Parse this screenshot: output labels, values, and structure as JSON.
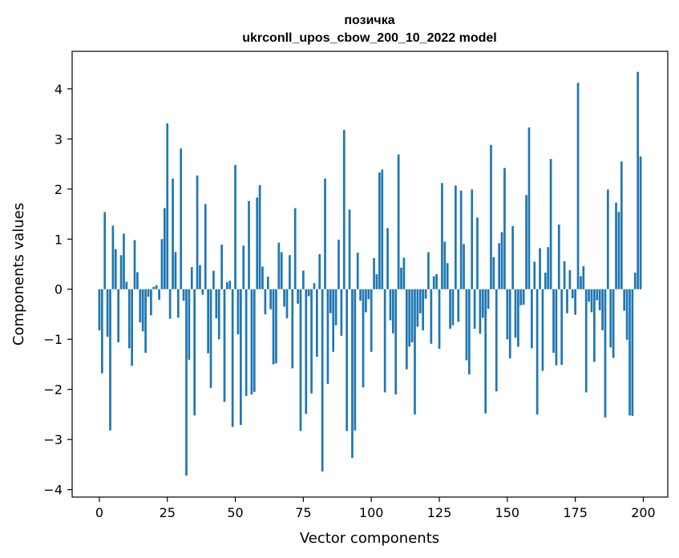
{
  "chart_data": {
    "type": "bar",
    "title_line1": "позичка",
    "title_line2": "ukrconll_upos_cbow_200_10_2022 model",
    "xlabel": "Vector components",
    "ylabel": "Components values",
    "xlim": [
      -10,
      209
    ],
    "ylim": [
      -4.15,
      4.75
    ],
    "xticks": [
      0,
      25,
      50,
      75,
      100,
      125,
      150,
      175,
      200
    ],
    "xtick_labels": [
      "0",
      "25",
      "50",
      "75",
      "100",
      "125",
      "150",
      "175",
      "200"
    ],
    "yticks": [
      -4,
      -3,
      -2,
      -1,
      0,
      1,
      2,
      3,
      4
    ],
    "ytick_labels": [
      "−4",
      "−3",
      "−2",
      "−1",
      "0",
      "1",
      "2",
      "3",
      "4"
    ],
    "bar_color": "#1f77b4",
    "grid": false,
    "x": [
      0,
      1,
      2,
      3,
      4,
      5,
      6,
      7,
      8,
      9,
      10,
      11,
      12,
      13,
      14,
      15,
      16,
      17,
      18,
      19,
      20,
      21,
      22,
      23,
      24,
      25,
      26,
      27,
      28,
      29,
      30,
      31,
      32,
      33,
      34,
      35,
      36,
      37,
      38,
      39,
      40,
      41,
      42,
      43,
      44,
      45,
      46,
      47,
      48,
      49,
      50,
      51,
      52,
      53,
      54,
      55,
      56,
      57,
      58,
      59,
      60,
      61,
      62,
      63,
      64,
      65,
      66,
      67,
      68,
      69,
      70,
      71,
      72,
      73,
      74,
      75,
      76,
      77,
      78,
      79,
      80,
      81,
      82,
      83,
      84,
      85,
      86,
      87,
      88,
      89,
      90,
      91,
      92,
      93,
      94,
      95,
      96,
      97,
      98,
      99,
      100,
      101,
      102,
      103,
      104,
      105,
      106,
      107,
      108,
      109,
      110,
      111,
      112,
      113,
      114,
      115,
      116,
      117,
      118,
      119,
      120,
      121,
      122,
      123,
      124,
      125,
      126,
      127,
      128,
      129,
      130,
      131,
      132,
      133,
      134,
      135,
      136,
      137,
      138,
      139,
      140,
      141,
      142,
      143,
      144,
      145,
      146,
      147,
      148,
      149,
      150,
      151,
      152,
      153,
      154,
      155,
      156,
      157,
      158,
      159,
      160,
      161,
      162,
      163,
      164,
      165,
      166,
      167,
      168,
      169,
      170,
      171,
      172,
      173,
      174,
      175,
      176,
      177,
      178,
      179,
      180,
      181,
      182,
      183,
      184,
      185,
      186,
      187,
      188,
      189,
      190,
      191,
      192,
      193,
      194,
      195,
      196,
      197,
      198,
      199
    ],
    "values": [
      -0.82,
      -1.68,
      1.54,
      -0.95,
      -2.82,
      1.27,
      0.8,
      -1.06,
      0.68,
      1.11,
      0.15,
      -1.18,
      -1.53,
      0.98,
      0.34,
      -0.66,
      -0.84,
      -1.27,
      -0.15,
      -0.52,
      0.05,
      0.08,
      -0.21,
      1.0,
      1.62,
      3.31,
      -0.59,
      2.21,
      0.74,
      -0.57,
      2.81,
      -0.23,
      -3.72,
      -1.41,
      0.44,
      -2.52,
      2.27,
      0.48,
      -0.11,
      1.7,
      -1.28,
      -1.97,
      0.37,
      -0.58,
      -1.0,
      0.89,
      -2.25,
      0.14,
      0.17,
      -2.75,
      2.48,
      -0.9,
      -2.71,
      0.87,
      -2.13,
      1.76,
      -2.1,
      -2.05,
      1.83,
      2.08,
      0.45,
      -0.5,
      0.25,
      -0.4,
      -1.5,
      -1.48,
      0.93,
      0.74,
      -0.35,
      -0.58,
      0.68,
      -1.58,
      1.62,
      -0.29,
      -2.83,
      0.37,
      -2.49,
      -0.14,
      -2.08,
      0.12,
      -1.35,
      0.7,
      -3.64,
      2.21,
      -1.89,
      -0.48,
      -1.25,
      -0.72,
      0.99,
      -0.93,
      3.18,
      -2.83,
      1.59,
      -3.37,
      -2.82,
      0.73,
      -0.23,
      -1.96,
      -0.46,
      -0.2,
      -1.25,
      0.62,
      0.3,
      2.33,
      2.39,
      -2.06,
      1.22,
      -0.62,
      -0.88,
      -2.1,
      2.69,
      0.43,
      0.63,
      -1.6,
      -1.15,
      -1.06,
      -2.5,
      -0.75,
      -0.48,
      -0.82,
      -0.19,
      0.74,
      -1.09,
      0.26,
      0.3,
      -1.19,
      2.12,
      0.95,
      0.52,
      -0.79,
      -0.72,
      2.07,
      -0.65,
      1.97,
      0.9,
      -1.42,
      -1.7,
      1.99,
      -0.79,
      1.43,
      -0.89,
      -0.57,
      -2.48,
      -0.39,
      2.88,
      0.64,
      -2.04,
      0.92,
      1.14,
      2.42,
      -1.0,
      -1.38,
      1.26,
      -0.97,
      -1.15,
      -0.32,
      -0.31,
      1.88,
      3.23,
      -1.18,
      0.55,
      -2.5,
      0.82,
      -1.63,
      0.33,
      0.84,
      2.6,
      -1.27,
      -1.52,
      1.29,
      -1.51,
      0.56,
      -0.48,
      0.38,
      -0.18,
      -0.51,
      4.12,
      0.26,
      0.46,
      -2.06,
      -0.25,
      -0.46,
      -1.45,
      -0.22,
      -0.42,
      -0.82,
      -2.56,
      1.99,
      -1.16,
      -1.37,
      1.73,
      1.54,
      2.55,
      -0.43,
      -1.01,
      -2.52,
      -2.53,
      0.33,
      4.34,
      2.65
    ]
  }
}
